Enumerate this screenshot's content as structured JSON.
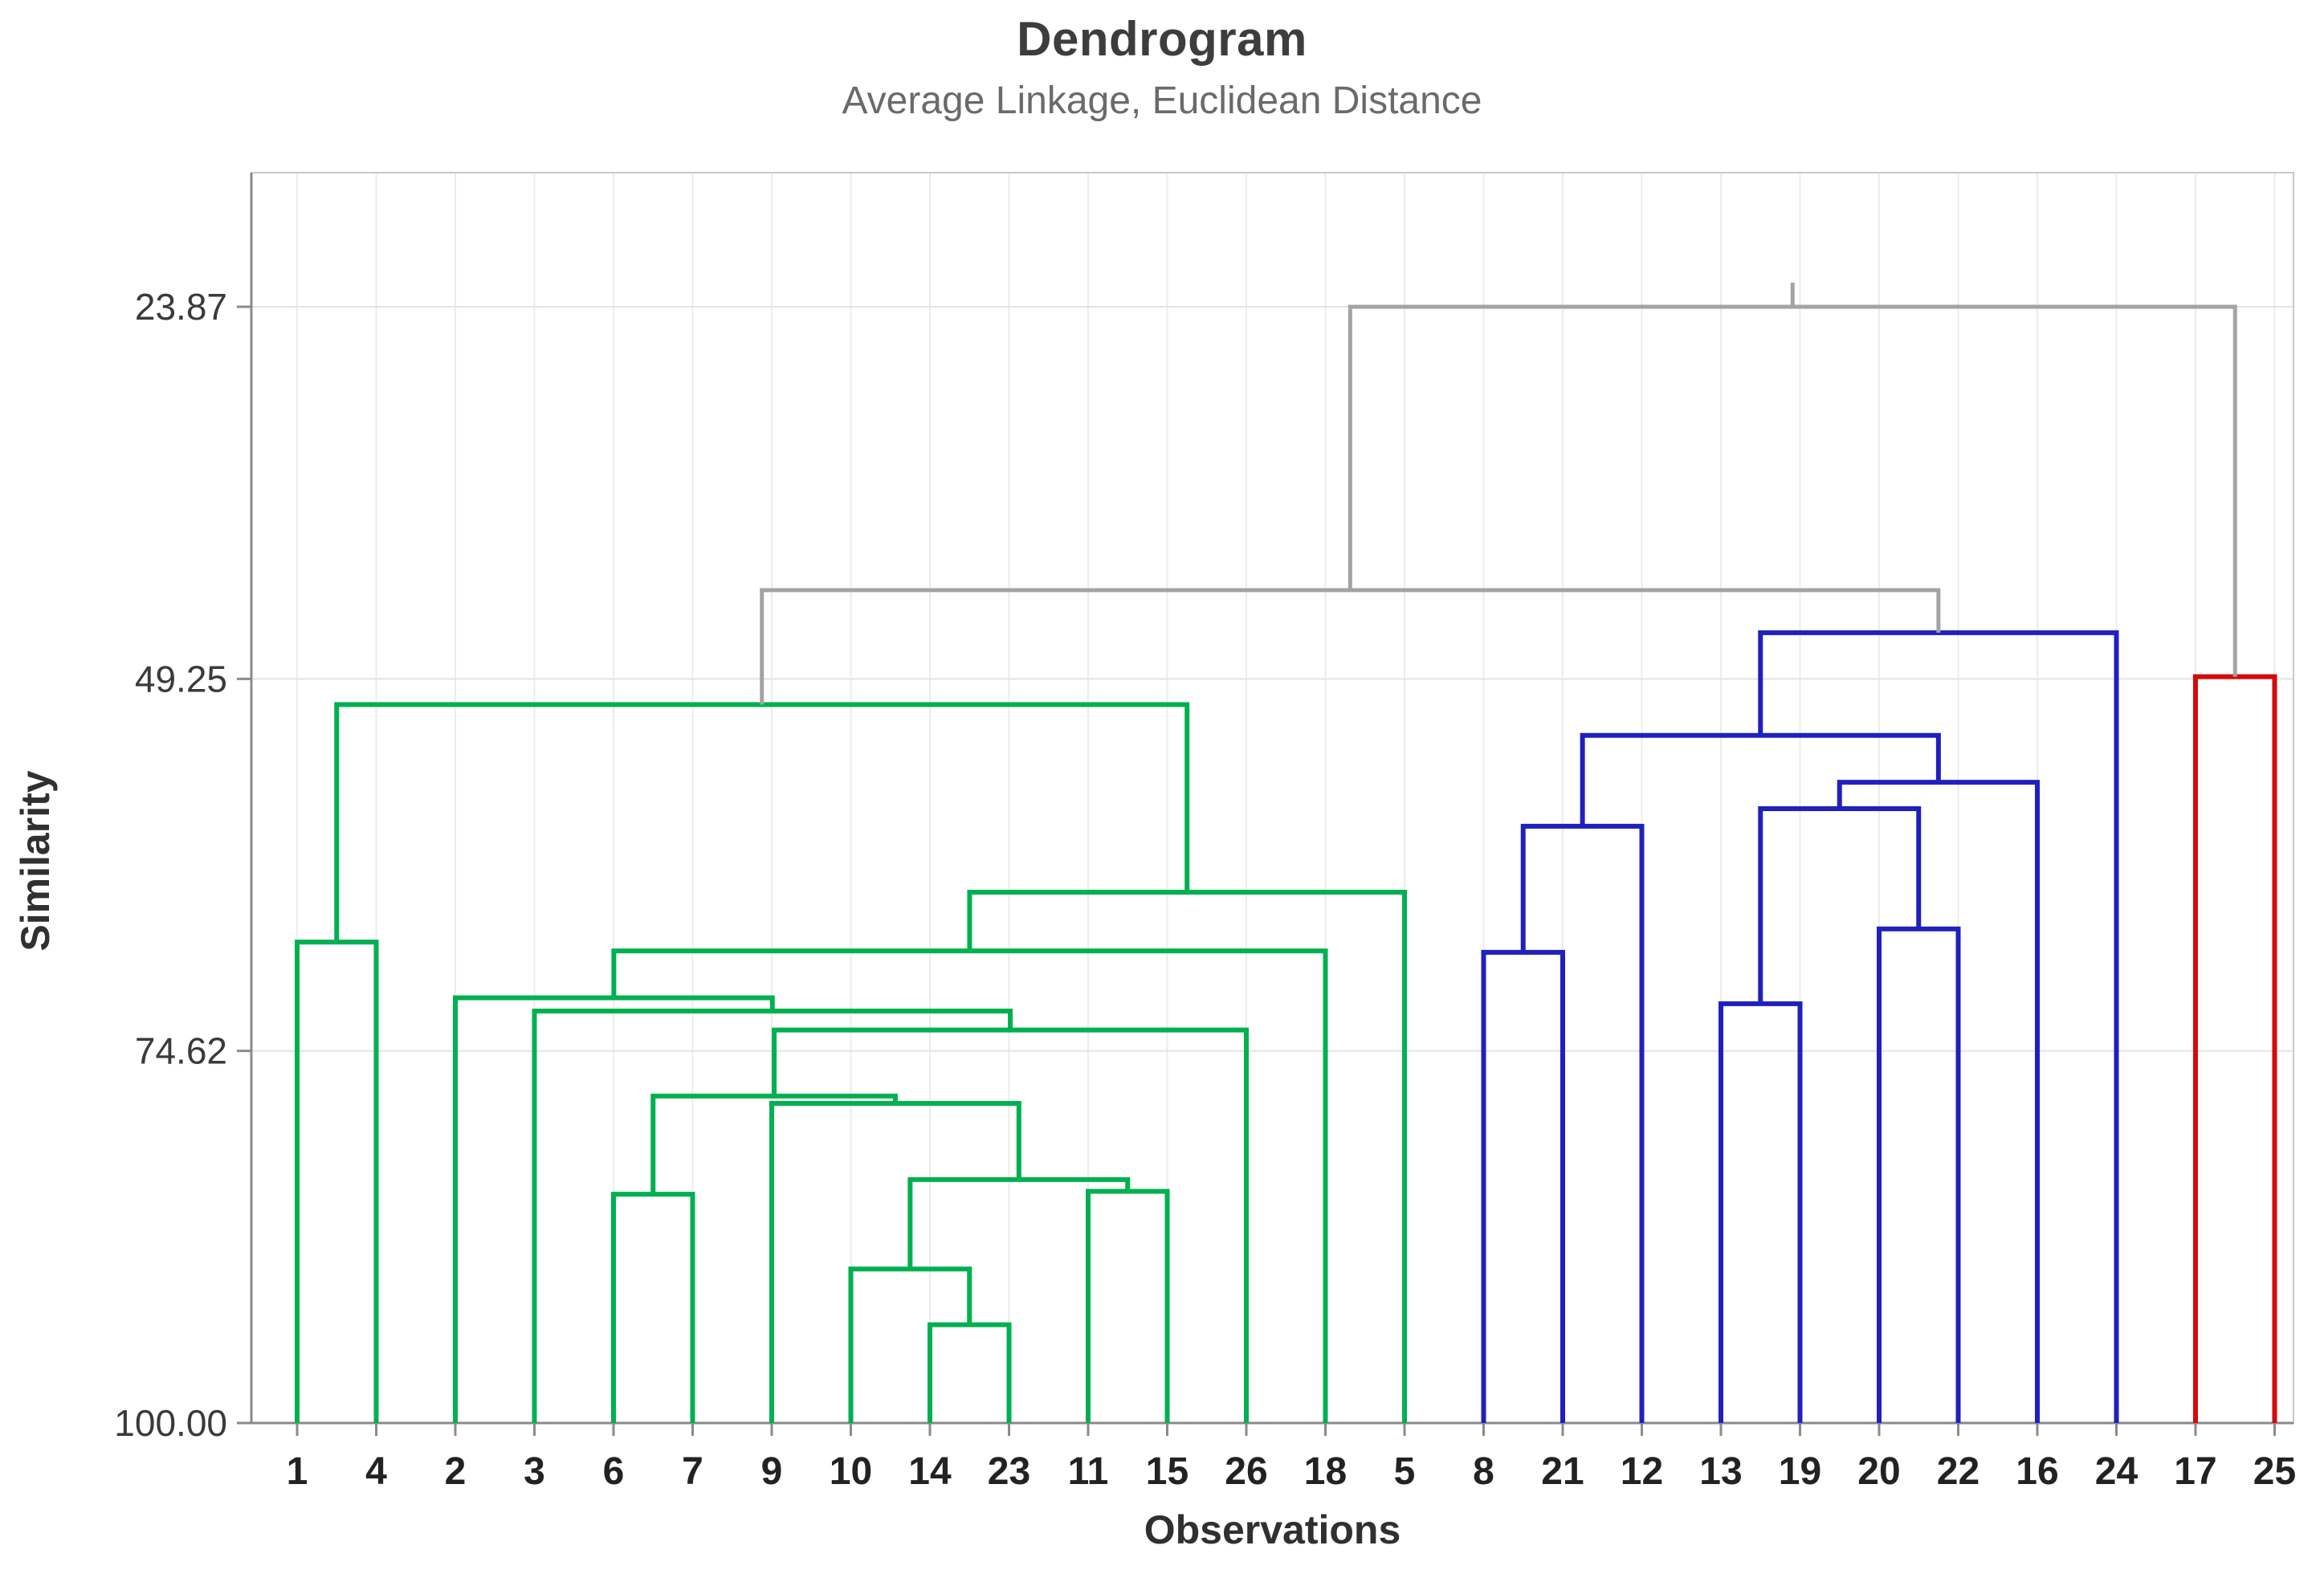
{
  "colors": {
    "green": "#00B050",
    "blue": "#2020BE",
    "red": "#D60A0A",
    "gray": "#A3A3A3",
    "grid_v": "#ECECEC",
    "grid_h": "#E2E2E2",
    "axis": "#8A8A8A",
    "frame": "#C9C9C9",
    "tick_text": "#3a3a3a",
    "leaf_text": "#222222"
  },
  "chart_data": {
    "type": "dendrogram",
    "title": "Dendrogram",
    "subtitle": "Average Linkage, Euclidean Distance",
    "xlabel": "Observations",
    "ylabel": "Similarity",
    "y_axis": {
      "label": "Similarity",
      "inverted": true,
      "range": [
        23.87,
        100.0
      ],
      "ticks": [
        {
          "label": "23.87",
          "value": 23.87
        },
        {
          "label": "49.25",
          "value": 49.25
        },
        {
          "label": "74.62",
          "value": 74.62
        },
        {
          "label": "100.00",
          "value": 100.0
        }
      ]
    },
    "x_axis": {
      "label": "Observations"
    },
    "leaves": [
      "1",
      "4",
      "2",
      "3",
      "6",
      "7",
      "9",
      "10",
      "14",
      "23",
      "11",
      "15",
      "26",
      "18",
      "5",
      "8",
      "21",
      "12",
      "13",
      "19",
      "20",
      "22",
      "16",
      "24",
      "17",
      "25"
    ],
    "merges": [
      {
        "id": "G1",
        "a": "14",
        "b": "23",
        "sim": 93.3,
        "color": "green"
      },
      {
        "id": "G2",
        "a": "10",
        "b": "G1",
        "sim": 89.5,
        "color": "green"
      },
      {
        "id": "G3",
        "a": "11",
        "b": "15",
        "sim": 84.2,
        "color": "green"
      },
      {
        "id": "G4",
        "a": "6",
        "b": "7",
        "sim": 84.4,
        "color": "green"
      },
      {
        "id": "G5",
        "a": "G2",
        "b": "G3",
        "sim": 83.4,
        "color": "green"
      },
      {
        "id": "G6",
        "a": "9",
        "b": "G5",
        "sim": 78.2,
        "color": "green"
      },
      {
        "id": "G7",
        "a": "G4",
        "b": "G6",
        "sim": 77.7,
        "color": "green"
      },
      {
        "id": "G8",
        "a": "G7",
        "b": "26",
        "sim": 73.2,
        "color": "green"
      },
      {
        "id": "G9",
        "a": "3",
        "b": "G8",
        "sim": 71.9,
        "color": "green"
      },
      {
        "id": "G10",
        "a": "2",
        "b": "G9",
        "sim": 71.0,
        "color": "green"
      },
      {
        "id": "G11",
        "a": "G10",
        "b": "18",
        "sim": 67.8,
        "color": "green"
      },
      {
        "id": "G12",
        "a": "G11",
        "b": "5",
        "sim": 63.8,
        "color": "green"
      },
      {
        "id": "G13",
        "a": "1",
        "b": "4",
        "sim": 67.2,
        "color": "green"
      },
      {
        "id": "G14",
        "a": "G13",
        "b": "G12",
        "sim": 51.0,
        "color": "green"
      },
      {
        "id": "B1",
        "a": "8",
        "b": "21",
        "sim": 67.9,
        "color": "blue"
      },
      {
        "id": "B2",
        "a": "B1",
        "b": "12",
        "sim": 59.3,
        "color": "blue"
      },
      {
        "id": "B3",
        "a": "13",
        "b": "19",
        "sim": 71.4,
        "color": "blue"
      },
      {
        "id": "B4",
        "a": "20",
        "b": "22",
        "sim": 66.3,
        "color": "blue"
      },
      {
        "id": "B5",
        "a": "B3",
        "b": "B4",
        "sim": 58.1,
        "color": "blue"
      },
      {
        "id": "B6",
        "a": "B5",
        "b": "16",
        "sim": 56.3,
        "color": "blue"
      },
      {
        "id": "B7",
        "a": "B2",
        "b": "B6",
        "sim": 53.1,
        "color": "blue"
      },
      {
        "id": "B8",
        "a": "B7",
        "b": "24",
        "sim": 46.1,
        "color": "blue"
      },
      {
        "id": "R1",
        "a": "17",
        "b": "25",
        "sim": 49.1,
        "color": "red"
      },
      {
        "id": "X1",
        "a": "G14",
        "b": "B8",
        "sim": 43.2,
        "color": "gray"
      },
      {
        "id": "X2",
        "a": "X1",
        "b": "R1",
        "sim": 23.87,
        "color": "gray"
      }
    ],
    "clusters": [
      {
        "color": "green",
        "members": [
          "1",
          "4",
          "2",
          "3",
          "6",
          "7",
          "9",
          "10",
          "14",
          "23",
          "11",
          "15",
          "26",
          "18",
          "5"
        ]
      },
      {
        "color": "blue",
        "members": [
          "8",
          "21",
          "12",
          "13",
          "19",
          "20",
          "22",
          "16",
          "24"
        ]
      },
      {
        "color": "red",
        "members": [
          "17",
          "25"
        ]
      }
    ]
  }
}
